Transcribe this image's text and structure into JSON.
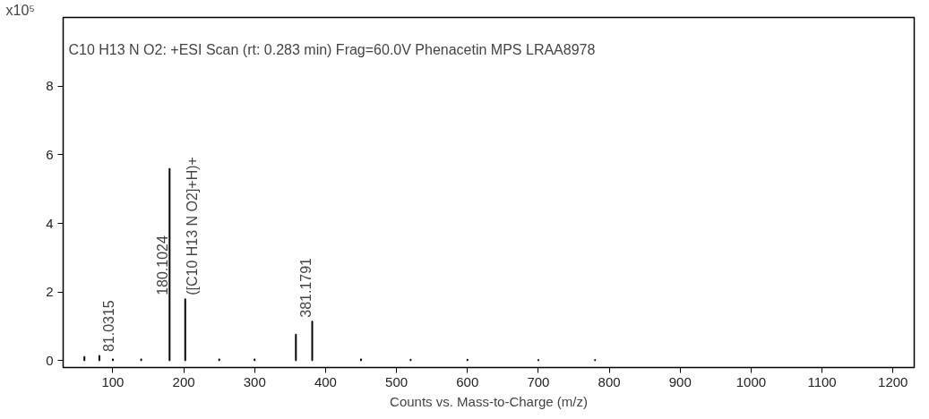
{
  "chart_data": {
    "type": "bar",
    "title": "C10 H13 N O2: +ESI Scan (rt: 0.283 min) Frag=60.0V Phenacetin MPS LRAA8978",
    "xlabel": "Counts vs. Mass-to-Charge (m/z)",
    "ylabel": "x10⁵",
    "x": [
      60,
      81.0315,
      100,
      140,
      180.1024,
      202.08,
      250,
      300,
      358.2,
      381.1791,
      450,
      520,
      600,
      700,
      780
    ],
    "values": [
      0.12,
      0.15,
      0.05,
      0.05,
      5.6,
      1.8,
      0.05,
      0.05,
      0.77,
      1.15,
      0.05,
      0.04,
      0.04,
      0.03,
      0.03
    ],
    "color": "#000000",
    "xlim": [
      30,
      1230
    ],
    "ylim": [
      -0.2,
      10
    ],
    "xticks": [
      100,
      200,
      300,
      400,
      500,
      600,
      700,
      800,
      900,
      1000,
      1100,
      1200
    ],
    "yticks": [
      0,
      2,
      4,
      6,
      8
    ],
    "grid": false,
    "annotations": [
      {
        "text": "81.0315",
        "x": 81.0315,
        "y": 0.15
      },
      {
        "text": "180.1024",
        "x": 180.1024,
        "y": 1.8
      },
      {
        "text": "([C10 H13 N O2]+H)+",
        "x": 202.08,
        "y": 1.8
      },
      {
        "text": "381.1791",
        "x": 381.1791,
        "y": 1.15
      }
    ]
  }
}
